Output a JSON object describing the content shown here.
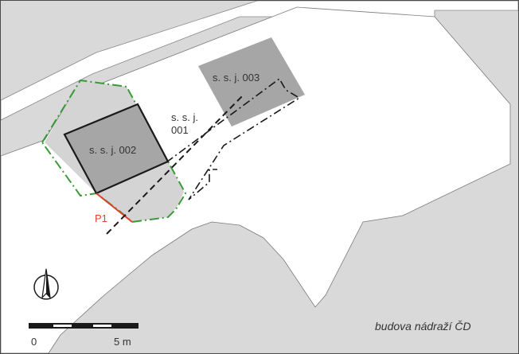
{
  "labels": {
    "ssj_003": "s. s. j. 003",
    "ssj_001_a": "s. s. j.",
    "ssj_001_b": "001",
    "ssj_002": "s. s. j. 002",
    "p1": "P1",
    "station_building": "budova nádraží ČD"
  },
  "scale_bar": {
    "start_label": "0",
    "end_label": "5 m"
  },
  "legend": {
    "north_arrow_icon": "north-arrow-icon"
  },
  "colors": {
    "background": "#d9d9d9",
    "open_area": "#ffffff",
    "building": "#a6a6a6",
    "building_light": "#c0c0c0",
    "outline": "#1a1a1a",
    "green_dash": "#3a9a3a",
    "red_line": "#e0402a"
  }
}
